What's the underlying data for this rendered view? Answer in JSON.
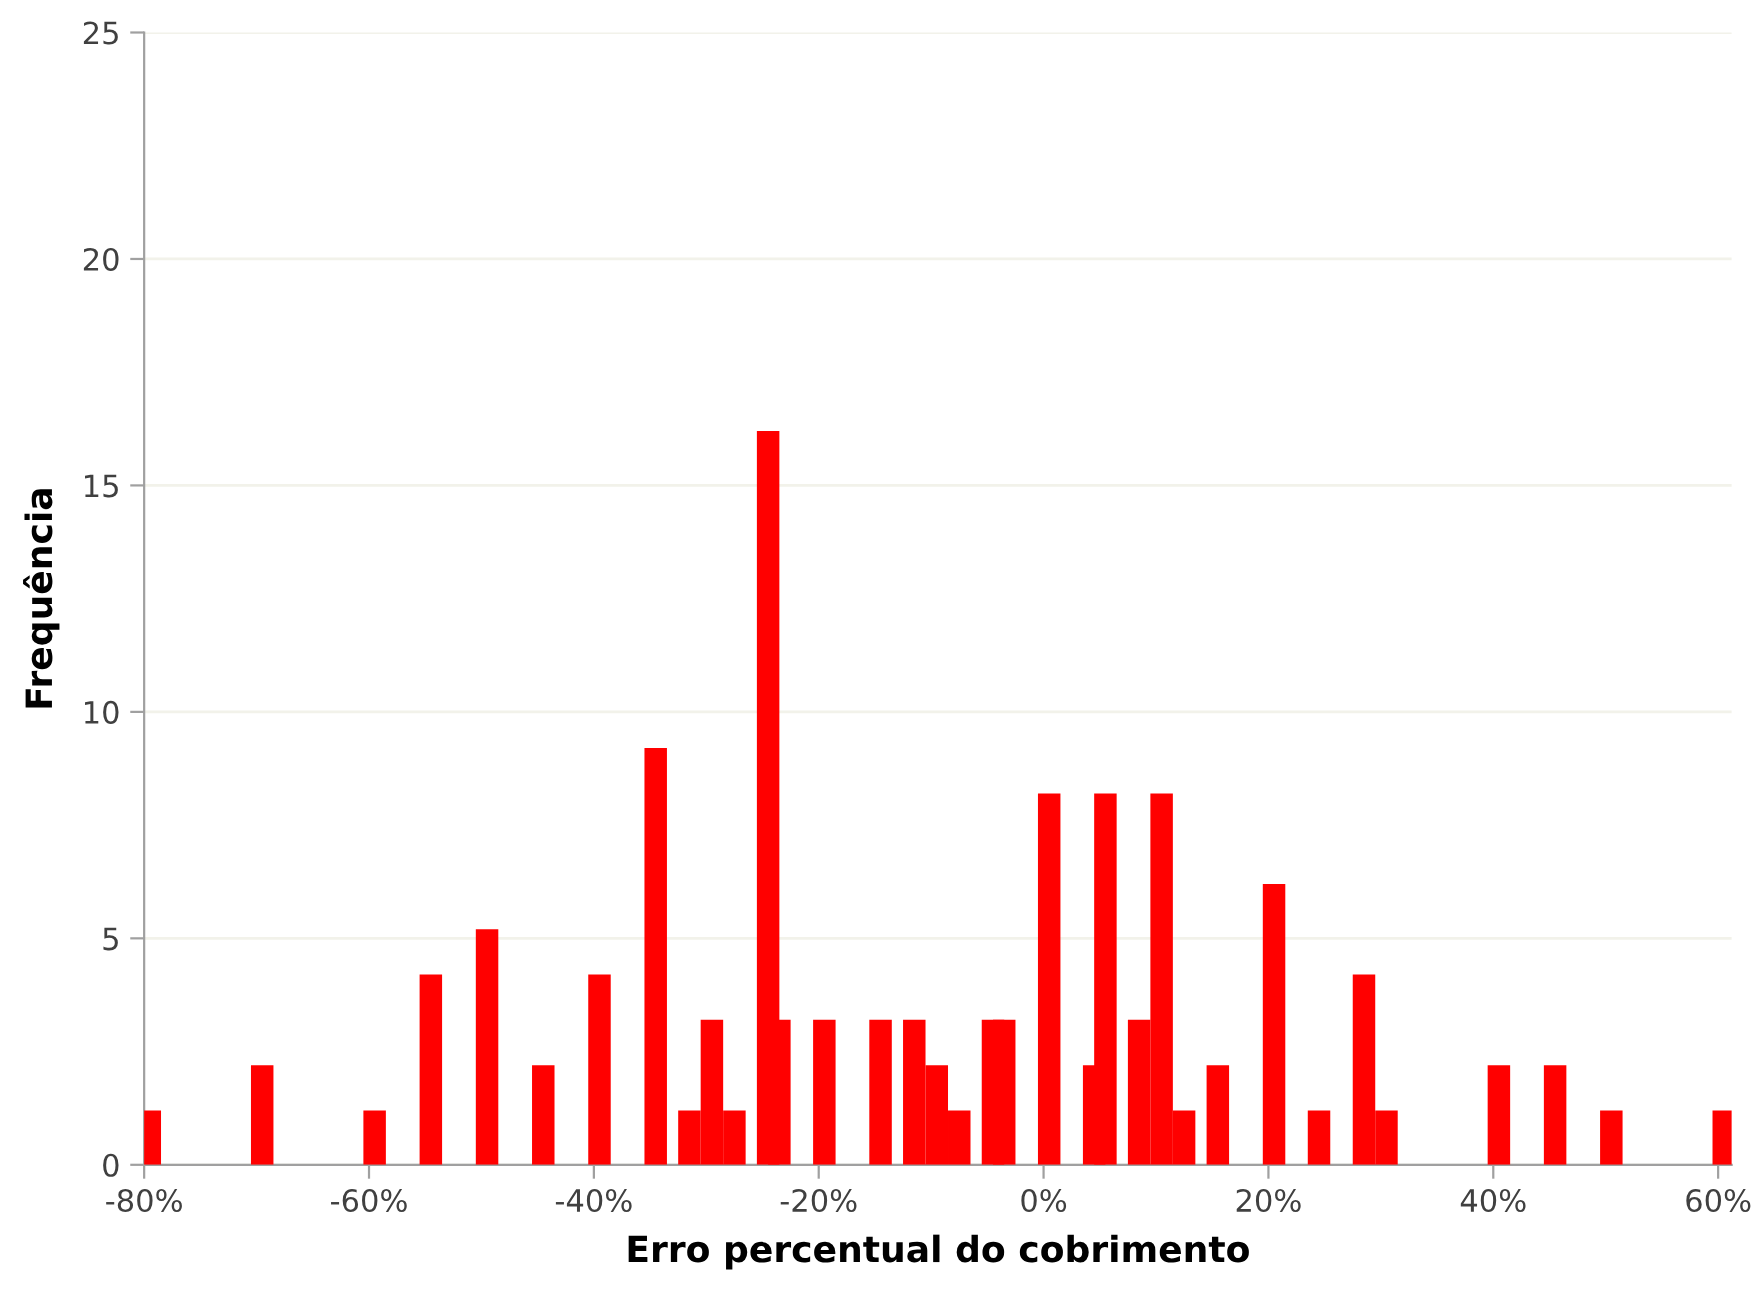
{
  "chart_data": {
    "type": "bar",
    "xlabel": "Erro percentual do cobrimento",
    "ylabel": "Frequência",
    "x": [
      -79.5,
      -69.5,
      -59.5,
      -54.5,
      -49.5,
      -44.5,
      -39.5,
      -34.5,
      -31.5,
      -29.5,
      -27.5,
      -24.5,
      -23.5,
      -19.5,
      -14.5,
      -11.5,
      -9.5,
      -7.5,
      -4.5,
      -3.5,
      0.5,
      4.5,
      5.5,
      8.5,
      10.5,
      12.5,
      15.5,
      20.5,
      24.5,
      28.5,
      30.5,
      40.5,
      45.5,
      50.5,
      60.5
    ],
    "values": [
      1.2,
      2.2,
      1.2,
      4.2,
      5.2,
      2.2,
      4.2,
      9.2,
      1.2,
      3.2,
      1.2,
      16.2,
      3.2,
      3.2,
      3.2,
      3.2,
      2.2,
      1.2,
      3.2,
      3.2,
      8.2,
      2.2,
      8.2,
      3.2,
      8.2,
      1.2,
      2.2,
      6.2,
      1.2,
      4.2,
      1.2,
      2.2,
      2.2,
      1.2,
      1.2
    ],
    "color": "#ff0000",
    "xlim": [
      -80,
      61.2
    ],
    "xticks": [
      {
        "value": -80,
        "label": "-80%"
      },
      {
        "value": -60,
        "label": "-60%"
      },
      {
        "value": -40,
        "label": "-40%"
      },
      {
        "value": -20,
        "label": "-20%"
      },
      {
        "value": 0,
        "label": "0%"
      },
      {
        "value": 20,
        "label": "20%"
      },
      {
        "value": 40,
        "label": "40%"
      },
      {
        "value": 60,
        "label": "60%"
      }
    ],
    "ylim": [
      0,
      25
    ],
    "yticks": [
      0,
      5,
      10,
      15,
      20,
      25
    ],
    "grid": "y"
  }
}
